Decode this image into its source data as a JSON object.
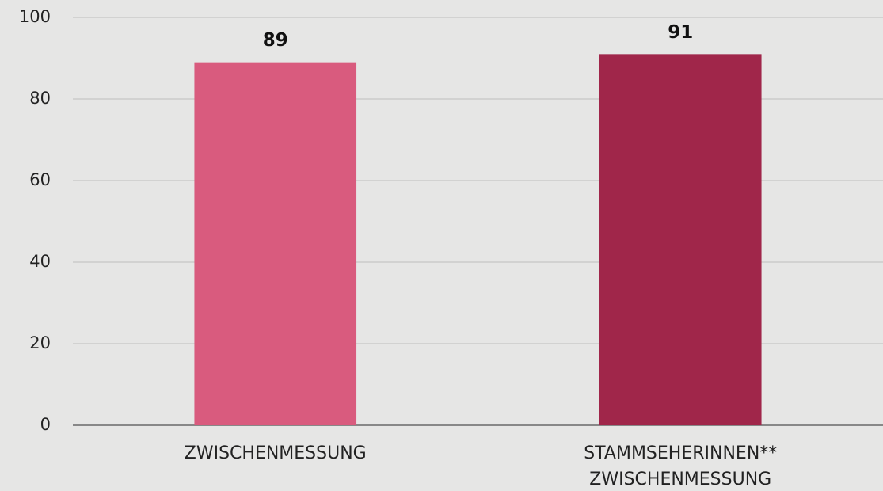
{
  "chart_data": {
    "type": "bar",
    "categories": [
      [
        "ZWISCHENMESSUNG"
      ],
      [
        "STAMMSEHERINNEN**",
        "ZWISCHENMESSUNG"
      ]
    ],
    "values": [
      89,
      91
    ],
    "colors": [
      "#d95b7e",
      "#a0264a"
    ],
    "ylim": [
      0,
      100
    ],
    "yticks": [
      0,
      20,
      40,
      60,
      80,
      100
    ],
    "grid": true
  }
}
